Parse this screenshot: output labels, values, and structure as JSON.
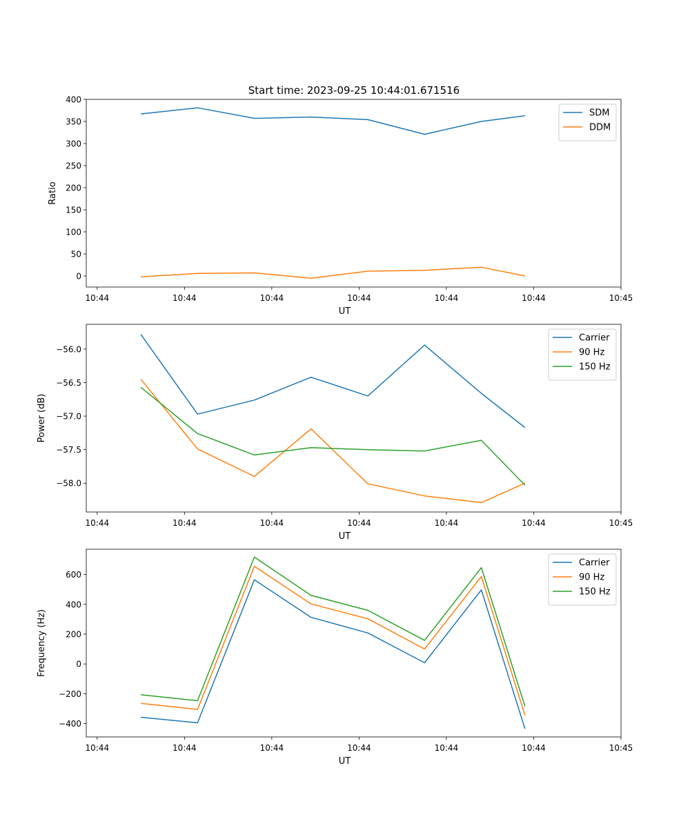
{
  "figure_title": "Start time: 2023-09-25 10:44:01.671516",
  "colors": {
    "blue": "#1f77b4",
    "orange": "#ff7f0e",
    "green": "#2ca02c"
  },
  "chart_data": [
    {
      "type": "line",
      "title": "Start time: 2023-09-25 10:44:01.671516",
      "xlabel": "UT",
      "ylabel": "Ratio",
      "x": [
        1.25,
        2.55,
        3.85,
        5.15,
        6.45,
        7.75,
        9.05,
        10.05
      ],
      "xlim": [
        0,
        12.25
      ],
      "xticks": [
        0.25,
        2.25,
        4.25,
        6.25,
        8.25,
        10.25,
        12.25
      ],
      "xtick_labels": [
        "10:44",
        "10:44",
        "10:44",
        "10:44",
        "10:44",
        "10:44",
        "10:45"
      ],
      "ylim": [
        -25,
        400
      ],
      "yticks": [
        0,
        50,
        100,
        150,
        200,
        250,
        300,
        350,
        400
      ],
      "ytick_labels": [
        "0",
        "50",
        "100",
        "150",
        "200",
        "250",
        "300",
        "350",
        "400"
      ],
      "legend_position": "top-right",
      "series": [
        {
          "name": "SDM",
          "color": "#1f77b4",
          "values": [
            367,
            381,
            357,
            360,
            354,
            321,
            350,
            363
          ]
        },
        {
          "name": "DDM",
          "color": "#ff7f0e",
          "values": [
            -2,
            6,
            7,
            -5,
            11,
            13,
            20,
            0
          ]
        }
      ]
    },
    {
      "type": "line",
      "title": "",
      "xlabel": "UT",
      "ylabel": "Power (dB)",
      "x": [
        1.25,
        2.55,
        3.85,
        5.15,
        6.45,
        7.75,
        9.05,
        10.05
      ],
      "xlim": [
        0,
        12.25
      ],
      "xticks": [
        0.25,
        2.25,
        4.25,
        6.25,
        8.25,
        10.25,
        12.25
      ],
      "xtick_labels": [
        "10:44",
        "10:44",
        "10:44",
        "10:44",
        "10:44",
        "10:44",
        "10:45"
      ],
      "ylim": [
        -58.43,
        -55.63
      ],
      "yticks": [
        -58.0,
        -57.5,
        -57.0,
        -56.5,
        -56.0
      ],
      "ytick_labels": [
        "−58.0",
        "−57.5",
        "−57.0",
        "−56.5",
        "−56.0"
      ],
      "legend_position": "top-right",
      "series": [
        {
          "name": "Carrier",
          "color": "#1f77b4",
          "values": [
            -55.78,
            -56.97,
            -56.76,
            -56.42,
            -56.7,
            -55.94,
            -56.66,
            -57.17
          ]
        },
        {
          "name": "90 Hz",
          "color": "#ff7f0e",
          "values": [
            -56.45,
            -57.49,
            -57.9,
            -57.19,
            -58.01,
            -58.19,
            -58.29,
            -58.0
          ]
        },
        {
          "name": "150 Hz",
          "color": "#2ca02c",
          "values": [
            -56.57,
            -57.26,
            -57.58,
            -57.47,
            -57.5,
            -57.52,
            -57.36,
            -58.03
          ]
        }
      ]
    },
    {
      "type": "line",
      "title": "",
      "xlabel": "UT",
      "ylabel": "Frequency (Hz)",
      "x": [
        1.25,
        2.55,
        3.85,
        5.15,
        6.45,
        7.75,
        9.05,
        10.05
      ],
      "xlim": [
        0,
        12.25
      ],
      "xticks": [
        0.25,
        2.25,
        4.25,
        6.25,
        8.25,
        10.25,
        12.25
      ],
      "xtick_labels": [
        "10:44",
        "10:44",
        "10:44",
        "10:44",
        "10:44",
        "10:44",
        "10:45"
      ],
      "ylim": [
        -490,
        770
      ],
      "yticks": [
        -400,
        -200,
        0,
        200,
        400,
        600
      ],
      "ytick_labels": [
        "−400",
        "−200",
        "0",
        "200",
        "400",
        "600"
      ],
      "legend_position": "top-right",
      "series": [
        {
          "name": "Carrier",
          "color": "#1f77b4",
          "values": [
            -358,
            -395,
            565,
            313,
            208,
            8,
            497,
            -435
          ]
        },
        {
          "name": "90 Hz",
          "color": "#ff7f0e",
          "values": [
            -265,
            -305,
            655,
            403,
            303,
            100,
            587,
            -345
          ]
        },
        {
          "name": "150 Hz",
          "color": "#2ca02c",
          "values": [
            -207,
            -247,
            717,
            460,
            360,
            158,
            647,
            -285
          ]
        }
      ]
    }
  ]
}
